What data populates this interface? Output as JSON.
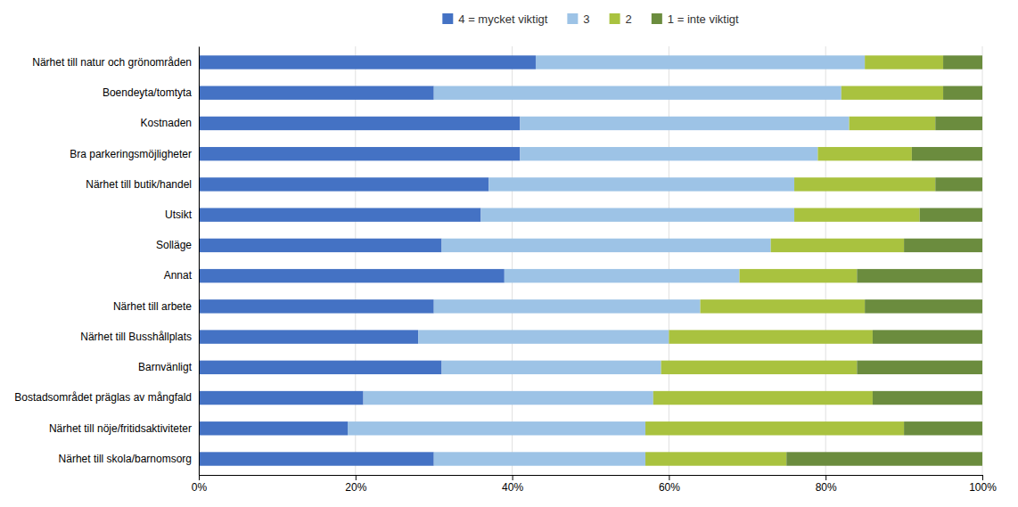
{
  "chart_data": {
    "type": "bar",
    "orientation": "horizontal",
    "stacked": true,
    "categories": [
      "Närhet till natur och grönområden",
      "Boendeyta/tomtyta",
      "Kostnaden",
      "Bra parkeringsmöjligheter",
      "Närhet till butik/handel",
      "Utsikt",
      "Solläge",
      "Annat",
      "Närhet till arbete",
      "Närhet till Busshållplats",
      "Barnvänligt",
      "Bostadsområdet präglas av mångfald",
      "Närhet till nöje/fritidsaktiviteter",
      "Närhet till skola/barnomsorg"
    ],
    "series": [
      {
        "name": "4 = mycket viktigt",
        "color": "#4472C4",
        "values": [
          43,
          30,
          41,
          41,
          37,
          36,
          31,
          39,
          30,
          28,
          31,
          21,
          19,
          30
        ]
      },
      {
        "name": "3",
        "color": "#9DC3E6",
        "values": [
          42,
          52,
          42,
          38,
          39,
          40,
          42,
          30,
          34,
          32,
          28,
          37,
          38,
          27
        ]
      },
      {
        "name": "2",
        "color": "#A9C23F",
        "values": [
          10,
          13,
          11,
          12,
          18,
          16,
          17,
          15,
          21,
          26,
          25,
          28,
          33,
          18
        ]
      },
      {
        "name": "1 = inte viktigt",
        "color": "#6B8C3E",
        "values": [
          5,
          5,
          6,
          9,
          6,
          8,
          10,
          16,
          15,
          14,
          16,
          14,
          10,
          25
        ]
      }
    ],
    "xlim": [
      0,
      100
    ],
    "xticks": [
      {
        "value": 0,
        "label": "0%"
      },
      {
        "value": 20,
        "label": "20%"
      },
      {
        "value": 40,
        "label": "40%"
      },
      {
        "value": 60,
        "label": "60%"
      },
      {
        "value": 80,
        "label": "80%"
      },
      {
        "value": 100,
        "label": "100%"
      }
    ],
    "grid": true,
    "legend": "top"
  }
}
